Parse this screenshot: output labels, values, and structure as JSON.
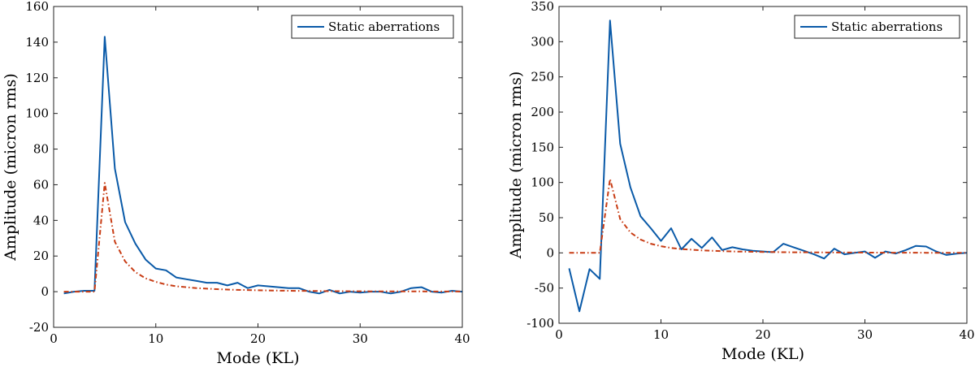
{
  "colors": {
    "series": "#0a5aa8",
    "fit": "#c83c14",
    "axis": "#222222"
  },
  "chart_data": [
    {
      "type": "line",
      "xlabel": "Mode (KL)",
      "ylabel": "Amplitude (micron rms)",
      "xlim": [
        0,
        40
      ],
      "ylim": [
        -20,
        160
      ],
      "xticks": [
        0,
        10,
        20,
        30,
        40
      ],
      "yticks": [
        -20,
        0,
        20,
        40,
        60,
        80,
        100,
        120,
        140,
        160
      ],
      "legend": {
        "placement": "top-right",
        "entries": [
          "Static aberrations"
        ]
      },
      "series": [
        {
          "name": "Static aberrations",
          "style": "solid",
          "x": [
            1,
            2,
            3,
            4,
            5,
            6,
            7,
            8,
            9,
            10,
            11,
            12,
            13,
            14,
            15,
            16,
            17,
            18,
            19,
            20,
            21,
            22,
            23,
            24,
            25,
            26,
            27,
            28,
            29,
            30,
            31,
            32,
            33,
            34,
            35,
            36,
            37,
            38,
            39,
            40
          ],
          "values": [
            -1,
            0,
            0.5,
            0.5,
            143,
            69,
            39,
            27,
            18,
            13,
            12,
            8,
            7,
            6,
            5,
            5,
            3.5,
            5,
            2,
            3.5,
            3,
            2.5,
            2,
            2,
            0,
            -1,
            1,
            -1,
            0,
            -0.5,
            0,
            0,
            -1,
            0,
            2,
            2.5,
            0,
            -0.5,
            0.5,
            0
          ]
        },
        {
          "name": "",
          "style": "dash-dot",
          "x": [
            1,
            2,
            3,
            4,
            5,
            6,
            7,
            8,
            9,
            10,
            11,
            12,
            13,
            14,
            15,
            16,
            17,
            18,
            19,
            20,
            21,
            22,
            23,
            24,
            25,
            26,
            27,
            28,
            29,
            30,
            31,
            32,
            33,
            34,
            35,
            36,
            37,
            38,
            39,
            40
          ],
          "values": [
            0,
            0,
            0,
            0,
            61,
            28,
            17,
            11,
            7.5,
            5.5,
            4,
            3,
            2.5,
            2,
            1.7,
            1.4,
            1.2,
            1,
            0.9,
            0.8,
            0.7,
            0.6,
            0.5,
            0.45,
            0.4,
            0.35,
            0.3,
            0.3,
            0.25,
            0.25,
            0.2,
            0.2,
            0.2,
            0.15,
            0.15,
            0.15,
            0.1,
            0.1,
            0.1,
            0.1
          ]
        }
      ]
    },
    {
      "type": "line",
      "xlabel": "Mode (KL)",
      "ylabel": "Amplitude (micron rms)",
      "xlim": [
        0,
        40
      ],
      "ylim": [
        -100,
        350
      ],
      "xticks": [
        0,
        10,
        20,
        30,
        40
      ],
      "yticks": [
        -100,
        -50,
        0,
        50,
        100,
        150,
        200,
        250,
        300,
        350
      ],
      "legend": {
        "placement": "top-right",
        "entries": [
          "Static aberrations"
        ]
      },
      "series": [
        {
          "name": "Static aberrations",
          "style": "solid",
          "x": [
            1,
            2,
            3,
            4,
            5,
            6,
            7,
            8,
            9,
            10,
            11,
            12,
            13,
            14,
            15,
            16,
            17,
            18,
            19,
            20,
            21,
            22,
            23,
            24,
            25,
            26,
            27,
            28,
            29,
            30,
            31,
            32,
            33,
            34,
            35,
            36,
            37,
            38,
            39,
            40
          ],
          "values": [
            -22,
            -83,
            -23,
            -37,
            330,
            155,
            93,
            52,
            35,
            17,
            35,
            5,
            20,
            7,
            22,
            4,
            8,
            5,
            3,
            2,
            1,
            13,
            8,
            3,
            -2,
            -8,
            6,
            -2,
            0,
            2,
            -7,
            2,
            -1,
            4,
            10,
            9,
            2,
            -3,
            -1,
            0
          ]
        },
        {
          "name": "",
          "style": "dash-dot",
          "x": [
            1,
            2,
            3,
            4,
            5,
            6,
            7,
            8,
            9,
            10,
            11,
            12,
            13,
            14,
            15,
            16,
            17,
            18,
            19,
            20,
            21,
            22,
            23,
            24,
            25,
            26,
            27,
            28,
            29,
            30,
            31,
            32,
            33,
            34,
            35,
            36,
            37,
            38,
            39,
            40
          ],
          "values": [
            0,
            0,
            0,
            0,
            105,
            48,
            29,
            19,
            13,
            9.5,
            7,
            5.5,
            4.5,
            3.5,
            3,
            2.5,
            2,
            1.8,
            1.5,
            1.3,
            1.2,
            1,
            0.9,
            0.8,
            0.7,
            0.6,
            0.55,
            0.5,
            0.45,
            0.4,
            0.35,
            0.3,
            0.3,
            0.25,
            0.25,
            0.2,
            0.2,
            0.2,
            0.15,
            0.15
          ]
        }
      ]
    }
  ]
}
